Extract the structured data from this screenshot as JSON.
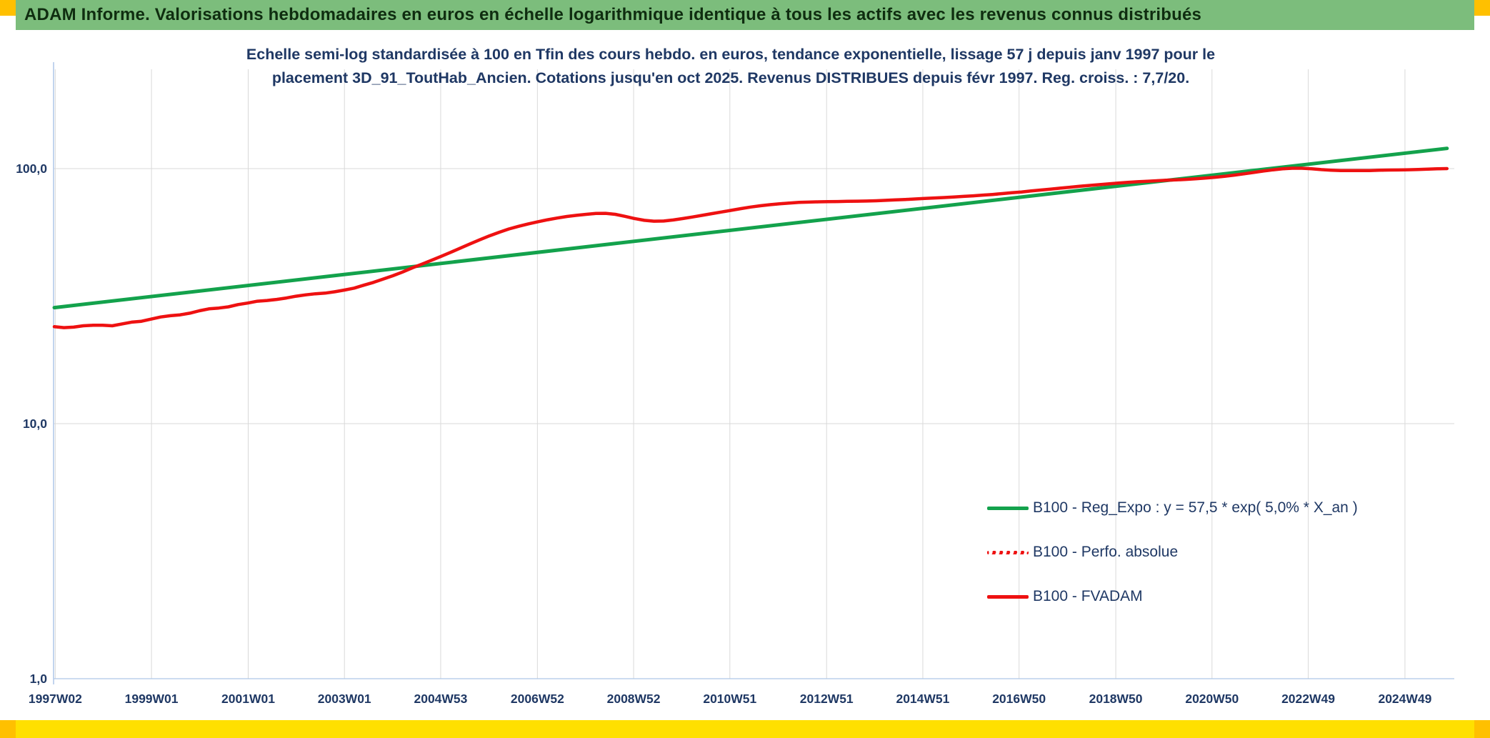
{
  "banner": {
    "title": "ADAM Informe. Valorisations hebdomadaires en euros en échelle logarithmique identique à tous les actifs avec les revenus connus distribués",
    "bg_color": "#7cbd7c",
    "text_color": "#0f2d10",
    "corner_color": "#ffc000"
  },
  "footer": {
    "bar_color": "#ffe000",
    "corner_color": "#ffc000"
  },
  "chart": {
    "title_lines": [
      "Echelle semi-log standardisée à 100 en Tfin des cours hebdo. en euros, tendance exponentielle, lissage 57 j depuis janv 1997 pour le",
      "placement 3D_91_ToutHab_Ancien. Cotations jusqu'en oct 2025. Revenus DISTRIBUES depuis févr 1997. Reg. croiss. : 7,7/20."
    ]
  },
  "chart_data": {
    "type": "line",
    "title": "Echelle semi-log standardisée à 100 en Tfin des cours hebdo. en euros, tendance exponentielle, lissage 57 j depuis janv 1997 pour le placement 3D_91_ToutHab_Ancien. Cotations jusqu'en oct 2025. Revenus DISTRIBUES depuis févr 1997. Reg. croiss. : 7,7/20.",
    "legend_position": "lower-right",
    "grid": true,
    "style": {
      "grid_color": "#d9d9d9",
      "text_color": "#1f3864",
      "axis_color": "#aec6e8"
    },
    "x_axis": {
      "label": "",
      "unit": "year-week",
      "range": [
        1997.0,
        2025.95
      ],
      "ticks": [
        {
          "label": "1997W02",
          "x": 1997.02
        },
        {
          "label": "1999W01",
          "x": 1999.01
        },
        {
          "label": "2001W01",
          "x": 2001.01
        },
        {
          "label": "2003W01",
          "x": 2003.0
        },
        {
          "label": "2004W53",
          "x": 2004.99
        },
        {
          "label": "2006W52",
          "x": 2006.99
        },
        {
          "label": "2008W52",
          "x": 2008.98
        },
        {
          "label": "2010W51",
          "x": 2010.97
        },
        {
          "label": "2012W51",
          "x": 2012.97
        },
        {
          "label": "2014W51",
          "x": 2014.96
        },
        {
          "label": "2016W50",
          "x": 2016.95
        },
        {
          "label": "2018W50",
          "x": 2018.95
        },
        {
          "label": "2020W50",
          "x": 2020.94
        },
        {
          "label": "2022W49",
          "x": 2022.93
        },
        {
          "label": "2024W49",
          "x": 2024.93
        }
      ]
    },
    "y_axis": {
      "scale": "log10",
      "range": [
        1,
        243
      ],
      "ticks": [
        {
          "label": "100,0",
          "value": 100
        },
        {
          "label": "10,0",
          "value": 10
        },
        {
          "label": "1,0",
          "value": 1
        }
      ]
    },
    "series": [
      {
        "id": "reg-expo",
        "name": "B100 - Reg_Expo : y = 57,5 * exp( 5,0% *  X_an )",
        "color": "#13a24c",
        "style": "solid",
        "width": 5,
        "note": "exponential regression - straight line on log scale",
        "points": [
          [
            1997.0,
            28.5
          ],
          [
            2025.8,
            120.0
          ]
        ]
      },
      {
        "id": "perfo-absolue",
        "name": "B100 - Perfo. absolue",
        "color": "#ee1111",
        "style": "dotted",
        "width": 4,
        "note": "overlaps the FVADAM curve (revenues distributed)",
        "points_ref": 2
      },
      {
        "id": "fvadam",
        "name": "B100 - FVADAM",
        "color": "#ee1111",
        "style": "solid",
        "width": 4.5,
        "points": [
          [
            1997.0,
            24.0
          ],
          [
            1997.2,
            23.8
          ],
          [
            1997.4,
            23.9
          ],
          [
            1997.6,
            24.2
          ],
          [
            1997.8,
            24.3
          ],
          [
            1998.0,
            24.3
          ],
          [
            1998.2,
            24.2
          ],
          [
            1998.4,
            24.6
          ],
          [
            1998.6,
            25.0
          ],
          [
            1998.8,
            25.2
          ],
          [
            1999.0,
            25.7
          ],
          [
            1999.2,
            26.2
          ],
          [
            1999.4,
            26.5
          ],
          [
            1999.6,
            26.7
          ],
          [
            1999.8,
            27.1
          ],
          [
            2000.0,
            27.7
          ],
          [
            2000.2,
            28.2
          ],
          [
            2000.4,
            28.4
          ],
          [
            2000.6,
            28.7
          ],
          [
            2000.8,
            29.3
          ],
          [
            2001.0,
            29.7
          ],
          [
            2001.2,
            30.2
          ],
          [
            2001.4,
            30.4
          ],
          [
            2001.6,
            30.7
          ],
          [
            2001.8,
            31.1
          ],
          [
            2002.0,
            31.6
          ],
          [
            2002.2,
            32.0
          ],
          [
            2002.4,
            32.3
          ],
          [
            2002.6,
            32.5
          ],
          [
            2002.8,
            32.9
          ],
          [
            2003.0,
            33.4
          ],
          [
            2003.2,
            34.0
          ],
          [
            2003.4,
            34.9
          ],
          [
            2003.6,
            35.8
          ],
          [
            2003.8,
            36.9
          ],
          [
            2004.0,
            38.0
          ],
          [
            2004.2,
            39.3
          ],
          [
            2004.4,
            40.8
          ],
          [
            2004.6,
            42.2
          ],
          [
            2004.8,
            43.7
          ],
          [
            2005.0,
            45.3
          ],
          [
            2005.2,
            47.0
          ],
          [
            2005.4,
            48.8
          ],
          [
            2005.6,
            50.7
          ],
          [
            2005.8,
            52.6
          ],
          [
            2006.0,
            54.5
          ],
          [
            2006.2,
            56.3
          ],
          [
            2006.4,
            58.0
          ],
          [
            2006.6,
            59.4
          ],
          [
            2006.8,
            60.7
          ],
          [
            2007.0,
            61.9
          ],
          [
            2007.2,
            63.0
          ],
          [
            2007.4,
            64.0
          ],
          [
            2007.6,
            64.9
          ],
          [
            2007.8,
            65.6
          ],
          [
            2008.0,
            66.2
          ],
          [
            2008.2,
            66.7
          ],
          [
            2008.4,
            66.8
          ],
          [
            2008.6,
            66.2
          ],
          [
            2008.8,
            65.0
          ],
          [
            2009.0,
            63.7
          ],
          [
            2009.2,
            62.7
          ],
          [
            2009.4,
            62.2
          ],
          [
            2009.6,
            62.3
          ],
          [
            2009.8,
            62.9
          ],
          [
            2010.0,
            63.7
          ],
          [
            2010.2,
            64.6
          ],
          [
            2010.4,
            65.6
          ],
          [
            2010.6,
            66.6
          ],
          [
            2010.8,
            67.6
          ],
          [
            2011.0,
            68.6
          ],
          [
            2011.2,
            69.7
          ],
          [
            2011.4,
            70.7
          ],
          [
            2011.6,
            71.5
          ],
          [
            2011.8,
            72.2
          ],
          [
            2012.0,
            72.8
          ],
          [
            2012.2,
            73.3
          ],
          [
            2012.4,
            73.7
          ],
          [
            2012.6,
            73.9
          ],
          [
            2012.8,
            74.1
          ],
          [
            2013.0,
            74.2
          ],
          [
            2013.2,
            74.3
          ],
          [
            2013.4,
            74.4
          ],
          [
            2013.6,
            74.5
          ],
          [
            2013.8,
            74.6
          ],
          [
            2014.0,
            74.8
          ],
          [
            2014.2,
            75.1
          ],
          [
            2014.4,
            75.4
          ],
          [
            2014.6,
            75.7
          ],
          [
            2014.8,
            76.0
          ],
          [
            2015.0,
            76.4
          ],
          [
            2015.2,
            76.7
          ],
          [
            2015.4,
            77.0
          ],
          [
            2015.6,
            77.4
          ],
          [
            2015.8,
            77.8
          ],
          [
            2016.0,
            78.2
          ],
          [
            2016.2,
            78.7
          ],
          [
            2016.4,
            79.2
          ],
          [
            2016.6,
            79.8
          ],
          [
            2016.8,
            80.4
          ],
          [
            2017.0,
            81.0
          ],
          [
            2017.2,
            81.7
          ],
          [
            2017.4,
            82.4
          ],
          [
            2017.6,
            83.1
          ],
          [
            2017.8,
            83.8
          ],
          [
            2018.0,
            84.5
          ],
          [
            2018.2,
            85.2
          ],
          [
            2018.4,
            85.9
          ],
          [
            2018.6,
            86.5
          ],
          [
            2018.8,
            87.1
          ],
          [
            2019.0,
            87.7
          ],
          [
            2019.2,
            88.3
          ],
          [
            2019.4,
            88.8
          ],
          [
            2019.6,
            89.2
          ],
          [
            2019.8,
            89.6
          ],
          [
            2020.0,
            90.0
          ],
          [
            2020.2,
            90.3
          ],
          [
            2020.4,
            90.7
          ],
          [
            2020.6,
            91.2
          ],
          [
            2020.8,
            91.8
          ],
          [
            2021.0,
            92.5
          ],
          [
            2021.2,
            93.3
          ],
          [
            2021.4,
            94.3
          ],
          [
            2021.6,
            95.4
          ],
          [
            2021.8,
            96.6
          ],
          [
            2022.0,
            97.8
          ],
          [
            2022.2,
            98.9
          ],
          [
            2022.4,
            99.8
          ],
          [
            2022.6,
            100.3
          ],
          [
            2022.8,
            100.3
          ],
          [
            2023.0,
            99.8
          ],
          [
            2023.2,
            99.1
          ],
          [
            2023.4,
            98.6
          ],
          [
            2023.6,
            98.3
          ],
          [
            2023.8,
            98.2
          ],
          [
            2024.0,
            98.2
          ],
          [
            2024.2,
            98.3
          ],
          [
            2024.4,
            98.5
          ],
          [
            2024.6,
            98.7
          ],
          [
            2024.8,
            98.8
          ],
          [
            2025.0,
            99.0
          ],
          [
            2025.2,
            99.2
          ],
          [
            2025.4,
            99.5
          ],
          [
            2025.6,
            99.8
          ],
          [
            2025.8,
            100.0
          ]
        ]
      }
    ]
  }
}
